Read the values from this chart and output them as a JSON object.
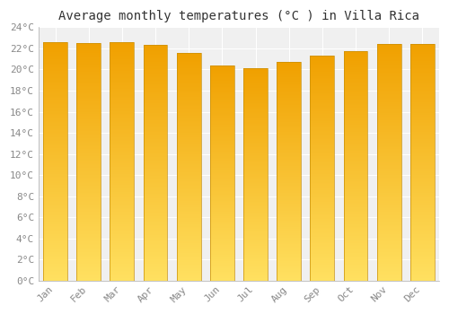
{
  "months": [
    "Jan",
    "Feb",
    "Mar",
    "Apr",
    "May",
    "Jun",
    "Jul",
    "Aug",
    "Sep",
    "Oct",
    "Nov",
    "Dec"
  ],
  "temperatures": [
    22.6,
    22.5,
    22.6,
    22.3,
    21.6,
    20.4,
    20.1,
    20.7,
    21.3,
    21.7,
    22.4,
    22.4
  ],
  "bar_color_top": "#F5A800",
  "bar_color_bottom": "#FFD966",
  "bar_edge_color": "#B8860B",
  "title": "Average monthly temperatures (°C ) in Villa Rica",
  "ylim": [
    0,
    24
  ],
  "ytick_step": 2,
  "background_color": "#FFFFFF",
  "plot_bg_color": "#F0F0F0",
  "grid_color": "#FFFFFF",
  "title_fontsize": 10,
  "tick_fontsize": 8,
  "tick_label_color": "#888888",
  "font_family": "monospace"
}
